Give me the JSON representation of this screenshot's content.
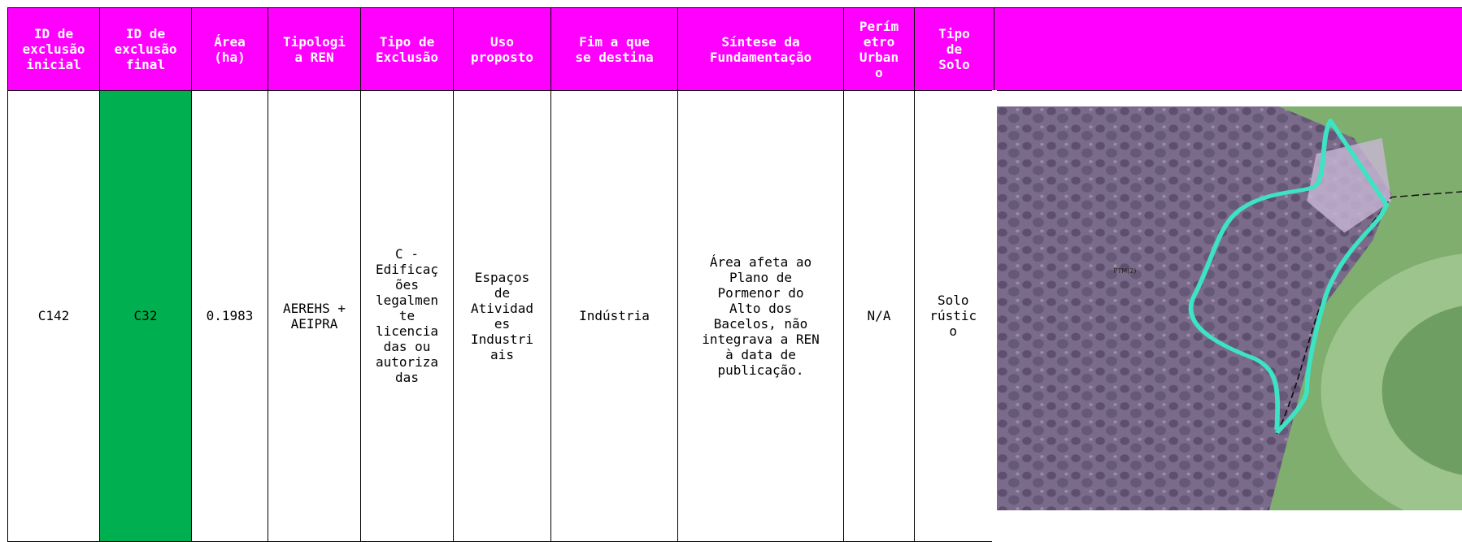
{
  "table": {
    "header": [
      "ID de\nexclusão\ninicial",
      "ID de\nexclusão\nfinal",
      "Área\n(ha)",
      "Tipologi\na REN",
      "Tipo de\nExclusão",
      "Uso\nproposto",
      "Fim a que\nse destina",
      "Síntese da\nFundamentação",
      "Perím\netro\nUrban\no",
      "Tipo\nde\nSolo"
    ],
    "rows": [
      [
        "C142",
        "C32",
        "0.1983",
        "AEREHS +\nAEIPRA",
        "C -\nEdificaç\nões\nlegalmen\nte\nlicencia\ndas ou\nautoriza\ndas",
        "Espaços\nde\nAtividad\nes\nIndustri\nais",
        "Indústria",
        "Área afeta ao\nPlano de\nPormenor do\nAlto dos\nBacelos, não\nintegrava a REN\nà data de\npublicação.",
        "N/A",
        "Solo\nrústic\no"
      ]
    ]
  },
  "map": {
    "label": "PTM(2)"
  }
}
